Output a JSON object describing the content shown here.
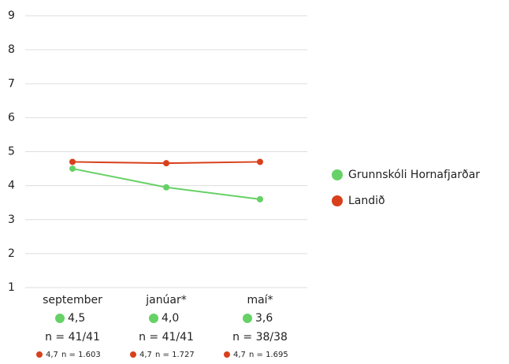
{
  "chart_data": {
    "type": "line",
    "categories": [
      "september",
      "janúar*",
      "maí*"
    ],
    "series": [
      {
        "name": "Grunnskóli Hornafjarðar",
        "color": "#66d166",
        "values": [
          4.5,
          3.95,
          3.6
        ],
        "value_labels": [
          "4,5",
          "4,0",
          "3,6"
        ],
        "n_labels": [
          "n = 41/41",
          "n = 41/41",
          "n = 38/38"
        ]
      },
      {
        "name": "Landið",
        "color": "#d8401c",
        "values": [
          4.7,
          4.66,
          4.7
        ],
        "value_labels": [
          "4,7",
          "4,7",
          "4,7"
        ],
        "n_labels": [
          "n = 1.603",
          "n = 1.727",
          "n = 1.695"
        ]
      }
    ],
    "ylim": [
      1,
      9
    ],
    "yticks": [
      1,
      2,
      3,
      4,
      5,
      6,
      7,
      8,
      9
    ],
    "grid": true,
    "legend": "right"
  }
}
